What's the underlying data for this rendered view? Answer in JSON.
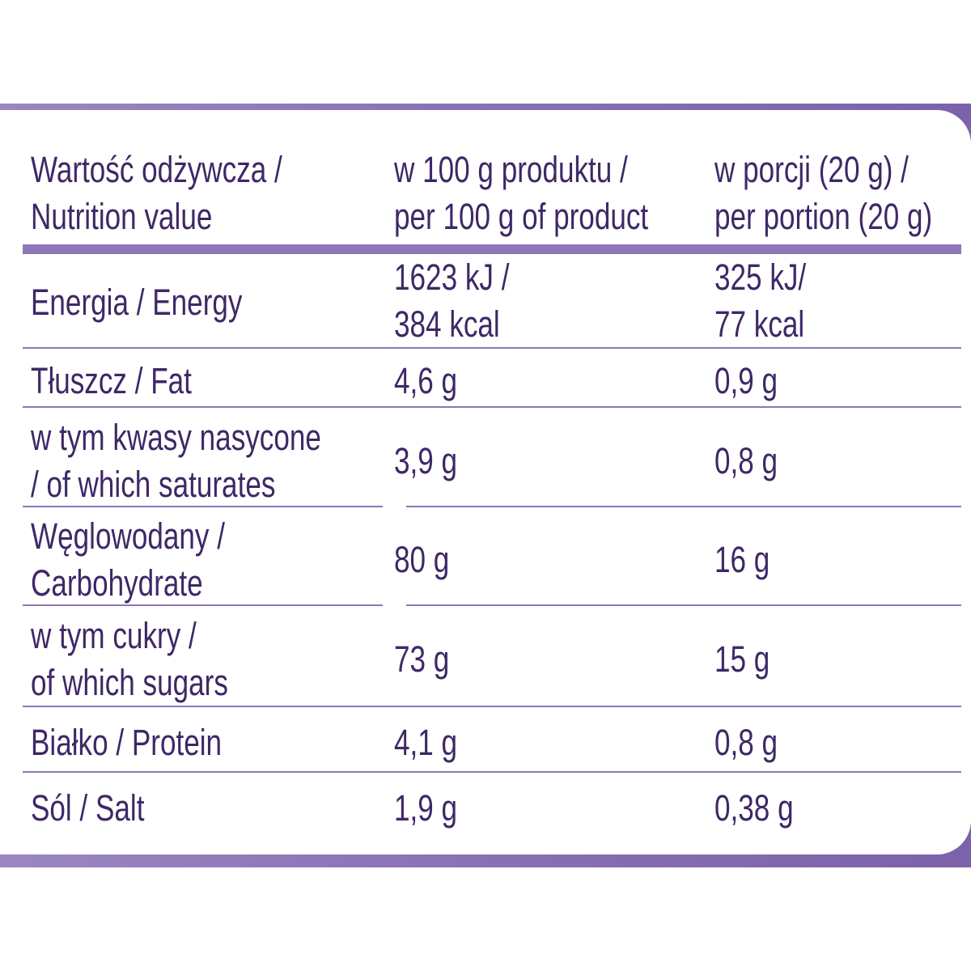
{
  "header": {
    "col1": [
      "Wartość odżywcza /",
      "Nutrition value"
    ],
    "col2": [
      "w 100 g produktu /",
      "per 100 g of product"
    ],
    "col3": [
      "w porcji (20 g) /",
      "per portion (20 g)"
    ]
  },
  "rows": [
    {
      "label": [
        "Energia / Energy"
      ],
      "per100": [
        "1623 kJ /",
        "384 kcal"
      ],
      "portion": [
        "325 kJ/",
        "77 kcal"
      ]
    },
    {
      "label": [
        "Tłuszcz / Fat"
      ],
      "per100": [
        "4,6 g"
      ],
      "portion": [
        "0,9 g"
      ]
    },
    {
      "label": [
        "w tym kwasy nasycone",
        "/ of which saturates"
      ],
      "per100": [
        "3,9 g"
      ],
      "portion": [
        "0,8 g"
      ]
    },
    {
      "label": [
        "Węglowodany /",
        "Carbohydrate"
      ],
      "per100": [
        "80 g"
      ],
      "portion": [
        "16 g"
      ]
    },
    {
      "label": [
        "w tym cukry /",
        "of which sugars"
      ],
      "per100": [
        "73 g"
      ],
      "portion": [
        "15 g"
      ]
    },
    {
      "label": [
        "Białko / Protein"
      ],
      "per100": [
        "4,1 g"
      ],
      "portion": [
        "0,8 g"
      ]
    },
    {
      "label": [
        "Sól / Salt"
      ],
      "per100": [
        "1,9 g"
      ],
      "portion": [
        "0,38 g"
      ]
    }
  ],
  "colors": {
    "text": "#3e2867",
    "frame": "#8a72b6",
    "rule": "#8b76b9"
  }
}
